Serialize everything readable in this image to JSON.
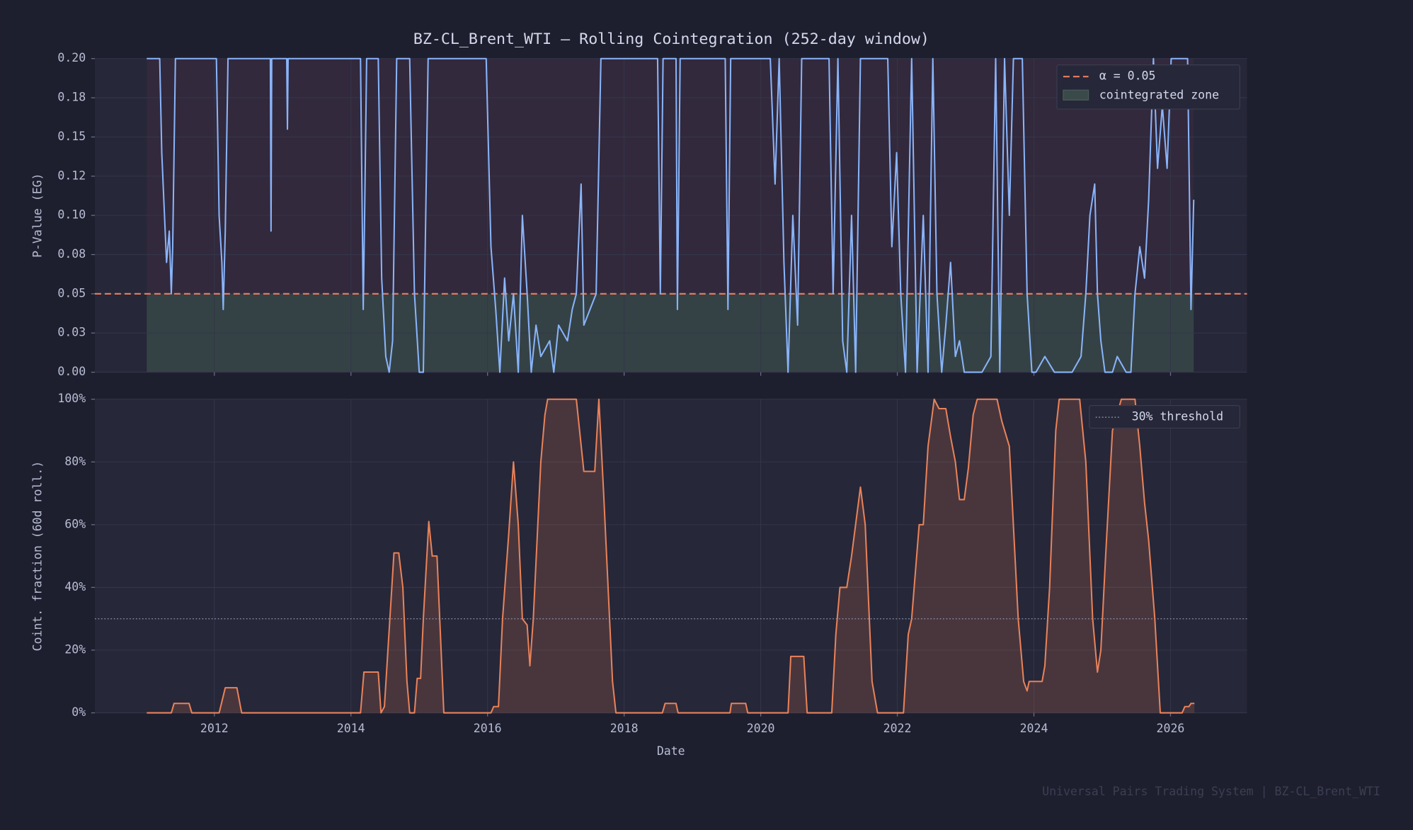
{
  "chart_data": [
    {
      "type": "line",
      "title": "BZ-CL_Brent_WTI  —  Rolling Cointegration  (252-day window)",
      "ylabel": "P-Value (EG)",
      "color": "#89b4fa",
      "x": [
        2011.01,
        2011.2,
        2011.23,
        2011.27,
        2011.3,
        2011.34,
        2011.37,
        2011.39,
        2011.43,
        2012.03,
        2012.07,
        2012.11,
        2012.13,
        2012.16,
        2012.2,
        2012.82,
        2012.83,
        2012.84,
        2013.06,
        2013.07,
        2013.08,
        2014.14,
        2014.18,
        2014.2,
        2014.23,
        2014.4,
        2014.45,
        2014.51,
        2014.56,
        2014.61,
        2014.67,
        2014.86,
        2014.93,
        2015.0,
        2015.06,
        2015.13,
        2015.98,
        2016.05,
        2016.12,
        2016.18,
        2016.25,
        2016.31,
        2016.38,
        2016.45,
        2016.51,
        2016.58,
        2016.64,
        2016.71,
        2016.78,
        2016.91,
        2016.97,
        2017.04,
        2017.17,
        2017.24,
        2017.3,
        2017.37,
        2017.41,
        2017.5,
        2017.59,
        2017.66,
        2018.49,
        2018.53,
        2018.57,
        2018.76,
        2018.78,
        2018.82,
        2019.48,
        2019.52,
        2019.56,
        2020.14,
        2020.21,
        2020.27,
        2020.34,
        2020.4,
        2020.47,
        2020.54,
        2020.6,
        2020.8,
        2021.0,
        2021.06,
        2021.13,
        2021.2,
        2021.26,
        2021.33,
        2021.39,
        2021.46,
        2021.86,
        2021.92,
        2021.99,
        2022.05,
        2022.12,
        2022.21,
        2022.29,
        2022.38,
        2022.45,
        2022.52,
        2022.58,
        2022.65,
        2022.71,
        2022.78,
        2022.85,
        2022.91,
        2022.98,
        2023.11,
        2023.24,
        2023.37,
        2023.44,
        2023.5,
        2023.57,
        2023.64,
        2023.7,
        2023.83,
        2023.9,
        2023.97,
        2024.03,
        2024.16,
        2024.3,
        2024.43,
        2024.56,
        2024.69,
        2024.76,
        2024.82,
        2024.89,
        2024.93,
        2024.98,
        2025.04,
        2025.15,
        2025.22,
        2025.35,
        2025.42,
        2025.48,
        2025.55,
        2025.62,
        2025.68,
        2025.75,
        2025.81,
        2025.88,
        2025.95,
        2026.01,
        2026.14,
        2026.25,
        2026.3,
        2026.34
      ],
      "values": [
        0.2,
        0.2,
        0.14,
        0.1,
        0.07,
        0.09,
        0.05,
        0.08,
        0.2,
        0.2,
        0.1,
        0.07,
        0.04,
        0.09,
        0.2,
        0.2,
        0.09,
        0.2,
        0.2,
        0.155,
        0.2,
        0.2,
        0.04,
        0.1,
        0.2,
        0.2,
        0.06,
        0.01,
        0.0,
        0.02,
        0.2,
        0.2,
        0.05,
        0.0,
        0.0,
        0.2,
        0.2,
        0.08,
        0.04,
        0.0,
        0.06,
        0.02,
        0.05,
        0.0,
        0.1,
        0.05,
        0.0,
        0.03,
        0.01,
        0.02,
        0.0,
        0.03,
        0.02,
        0.04,
        0.05,
        0.12,
        0.03,
        0.04,
        0.05,
        0.2,
        0.2,
        0.05,
        0.2,
        0.2,
        0.04,
        0.2,
        0.2,
        0.04,
        0.2,
        0.2,
        0.12,
        0.2,
        0.07,
        0.0,
        0.1,
        0.03,
        0.2,
        0.2,
        0.2,
        0.05,
        0.2,
        0.02,
        0.0,
        0.1,
        0.0,
        0.2,
        0.2,
        0.08,
        0.14,
        0.05,
        0.0,
        0.2,
        0.0,
        0.1,
        0.0,
        0.2,
        0.05,
        0.0,
        0.03,
        0.07,
        0.01,
        0.02,
        0.0,
        0.0,
        0.0,
        0.01,
        0.2,
        0.0,
        0.2,
        0.1,
        0.2,
        0.2,
        0.05,
        0.0,
        0.0,
        0.01,
        0.0,
        0.0,
        0.0,
        0.01,
        0.05,
        0.1,
        0.12,
        0.05,
        0.02,
        0.0,
        0.0,
        0.01,
        0.0,
        0.0,
        0.05,
        0.08,
        0.06,
        0.11,
        0.2,
        0.13,
        0.17,
        0.13,
        0.2,
        0.2,
        0.2,
        0.04,
        0.11
      ],
      "xlim": [
        2010.25,
        2027.12
      ],
      "ylim": [
        0,
        0.2
      ],
      "yticks": [
        {
          "value": 0,
          "label": "0.00"
        },
        {
          "value": 0.025,
          "label": "0.03"
        },
        {
          "value": 0.05,
          "label": "0.05"
        },
        {
          "value": 0.075,
          "label": "0.08"
        },
        {
          "value": 0.1,
          "label": "0.10"
        },
        {
          "value": 0.125,
          "label": "0.12"
        },
        {
          "value": 0.15,
          "label": "0.15"
        },
        {
          "value": 0.175,
          "label": "0.18"
        },
        {
          "value": 0.2,
          "label": "0.20"
        }
      ],
      "reference_line": {
        "value": 0.05,
        "label": "α = 0.05",
        "color": "#e07a5f"
      },
      "zone": {
        "label": "cointegrated zone",
        "color": "#3a4a48"
      },
      "grid": true
    },
    {
      "type": "area",
      "ylabel": "Coint. fraction (60d roll.)",
      "xlabel": "Date",
      "color": "#e8825a",
      "x": [
        2011.01,
        2011.37,
        2011.41,
        2011.63,
        2011.67,
        2012.07,
        2012.16,
        2012.33,
        2012.4,
        2014.14,
        2014.19,
        2014.4,
        2014.44,
        2014.49,
        2014.57,
        2014.63,
        2014.7,
        2014.76,
        2014.82,
        2014.86,
        2014.93,
        2014.97,
        2015.02,
        2015.06,
        2015.14,
        2015.19,
        2015.26,
        2015.32,
        2015.36,
        2016.05,
        2016.09,
        2016.16,
        2016.22,
        2016.31,
        2016.38,
        2016.45,
        2016.51,
        2016.58,
        2016.62,
        2016.67,
        2016.78,
        2016.84,
        2016.88,
        2017.3,
        2017.41,
        2017.57,
        2017.63,
        2017.7,
        2017.83,
        2017.88,
        2018.56,
        2018.6,
        2018.76,
        2018.79,
        2019.55,
        2019.57,
        2019.78,
        2019.81,
        2020.4,
        2020.44,
        2020.63,
        2020.68,
        2021.04,
        2021.1,
        2021.16,
        2021.26,
        2021.33,
        2021.46,
        2021.53,
        2021.63,
        2021.71,
        2022.09,
        2022.16,
        2022.21,
        2022.32,
        2022.38,
        2022.45,
        2022.54,
        2022.61,
        2022.71,
        2022.78,
        2022.85,
        2022.91,
        2022.98,
        2023.04,
        2023.11,
        2023.17,
        2023.46,
        2023.53,
        2023.64,
        2023.77,
        2023.85,
        2023.9,
        2023.93,
        2024.12,
        2024.16,
        2024.23,
        2024.32,
        2024.37,
        2024.67,
        2024.76,
        2024.86,
        2024.93,
        2024.98,
        2025.05,
        2025.15,
        2025.28,
        2025.48,
        2025.55,
        2025.62,
        2025.68,
        2025.77,
        2025.85,
        2026.17,
        2026.21,
        2026.27,
        2026.3,
        2026.35
      ],
      "values": [
        0,
        0,
        3,
        3,
        0,
        0,
        8,
        8,
        0,
        0,
        13,
        13,
        0,
        2,
        30,
        51,
        51,
        40,
        10,
        0,
        0,
        11,
        11,
        30,
        61,
        50,
        50,
        20,
        0,
        0,
        2,
        2,
        30,
        57,
        80,
        60,
        30,
        28,
        15,
        30,
        80,
        95,
        100,
        100,
        77,
        77,
        100,
        70,
        10,
        0,
        0,
        3,
        3,
        0,
        0,
        3,
        3,
        0,
        0,
        18,
        18,
        0,
        0,
        25,
        40,
        40,
        50,
        72,
        60,
        10,
        0,
        0,
        25,
        30,
        60,
        60,
        85,
        100,
        97,
        97,
        88,
        80,
        68,
        68,
        78,
        95,
        100,
        100,
        93,
        85,
        30,
        10,
        7,
        10,
        10,
        15,
        40,
        90,
        100,
        100,
        80,
        30,
        13,
        20,
        50,
        90,
        100,
        100,
        85,
        67,
        55,
        30,
        0,
        0,
        2,
        2,
        3,
        3
      ],
      "xlim": [
        2010.25,
        2027.12
      ],
      "ylim": [
        0,
        100
      ],
      "xticks": [
        2012,
        2014,
        2016,
        2018,
        2020,
        2022,
        2024,
        2026
      ],
      "yticks": [
        {
          "value": 0,
          "label": "0%"
        },
        {
          "value": 20,
          "label": "20%"
        },
        {
          "value": 40,
          "label": "40%"
        },
        {
          "value": 60,
          "label": "60%"
        },
        {
          "value": 80,
          "label": "80%"
        },
        {
          "value": 100,
          "label": "100%"
        }
      ],
      "reference_line": {
        "value": 30,
        "label": "30% threshold",
        "color": "#8a8ea6"
      },
      "grid": true
    }
  ],
  "footer": "Universal Pairs Trading System  |  BZ-CL_Brent_WTI"
}
